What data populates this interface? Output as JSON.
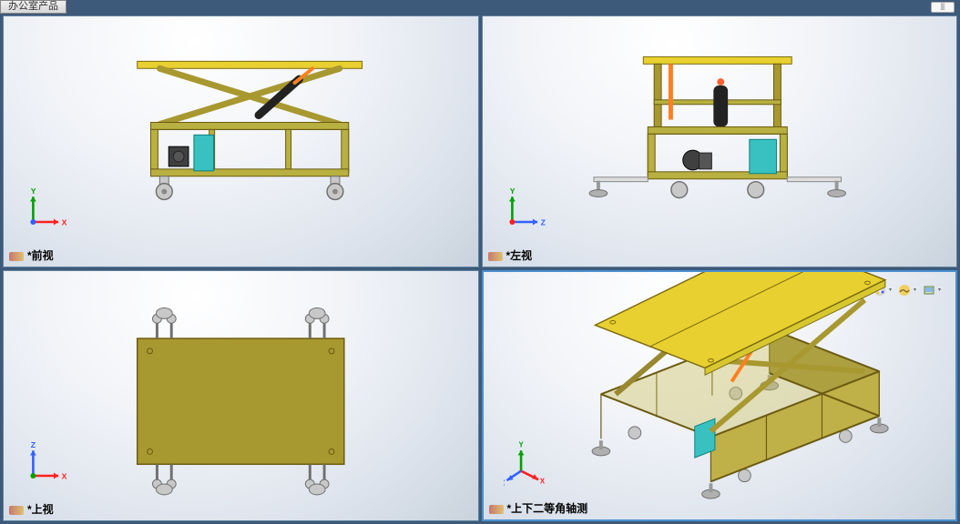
{
  "feature_tab": {
    "label": "办公室产品"
  },
  "collapse_icon": "⫿⫿",
  "views": {
    "front": {
      "label": "*前视"
    },
    "left": {
      "label": "*左视"
    },
    "top": {
      "label": "*上视"
    },
    "iso": {
      "label": "*上下二等角轴测"
    }
  },
  "triads": {
    "front": {
      "h_axis": "X",
      "v_axis": "Y",
      "h_color": "#ff2020",
      "v_color": "#00a000",
      "origin_color": "#3060ff"
    },
    "left": {
      "h_axis": "Z",
      "v_axis": "Y",
      "h_color": "#3060ff",
      "v_color": "#00a000",
      "origin_color": "#ff2020"
    },
    "top": {
      "h_axis": "X",
      "v_axis": "Z",
      "h_color": "#ff2020",
      "v_color": "#3060ff",
      "origin_color": "#00a000"
    },
    "iso": {
      "x_color": "#ff2020",
      "y_color": "#00a000",
      "z_color": "#3060ff"
    }
  },
  "toolbar": {
    "tools": [
      "zoom-to-fit",
      "zoom-area",
      "prev-view",
      "section",
      "view-orient",
      "display-style",
      "hide-show",
      "edit-appearance",
      "apply-scene",
      "view-settings"
    ]
  },
  "model": {
    "frame_color": "#b8b040",
    "frame_edge": "#6a5a10",
    "platform_color": "#e8d030",
    "platform_edge": "#7a6a10",
    "scissor_color": "#a89830",
    "guard_color": "#39c0c0",
    "cylinder_color": "#222222",
    "piston_color": "#ff8020",
    "caster_color": "#c8c8c8",
    "caster_edge": "#707070",
    "foot_color": "#b0b0b0",
    "motor_color": "#404040"
  }
}
